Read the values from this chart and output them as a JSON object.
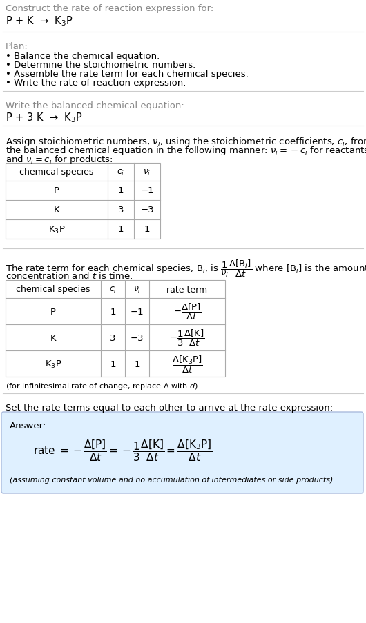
{
  "title_line1": "Construct the rate of reaction expression for:",
  "title_line2": "P + K  →  K$_3$P",
  "plan_header": "Plan:",
  "plan_items": [
    "• Balance the chemical equation.",
    "• Determine the stoichiometric numbers.",
    "• Assemble the rate term for each chemical species.",
    "• Write the rate of reaction expression."
  ],
  "balanced_header": "Write the balanced chemical equation:",
  "balanced_eq": "P + 3 K  →  K$_3$P",
  "stoich_intro1": "Assign stoichiometric numbers, $\\nu_i$, using the stoichiometric coefficients, $c_i$, from",
  "stoich_intro2": "the balanced chemical equation in the following manner: $\\nu_i = -c_i$ for reactants",
  "stoich_intro3": "and $\\nu_i = c_i$ for products:",
  "table1_headers": [
    "chemical species",
    "$c_i$",
    "$\\nu_i$"
  ],
  "table1_rows": [
    [
      "P",
      "1",
      "−1"
    ],
    [
      "K",
      "3",
      "−3"
    ],
    [
      "K$_3$P",
      "1",
      "1"
    ]
  ],
  "rate_intro1": "The rate term for each chemical species, B$_i$, is $\\dfrac{1}{\\nu_i}\\dfrac{\\Delta[\\mathrm{B}_i]}{\\Delta t}$ where [B$_i$] is the amount",
  "rate_intro2": "concentration and $t$ is time:",
  "table2_headers": [
    "chemical species",
    "$c_i$",
    "$\\nu_i$",
    "rate term"
  ],
  "table2_rows": [
    [
      "P",
      "1",
      "−1",
      "$-\\dfrac{\\Delta[\\mathrm{P}]}{\\Delta t}$"
    ],
    [
      "K",
      "3",
      "−3",
      "$-\\dfrac{1}{3}\\dfrac{\\Delta[\\mathrm{K}]}{\\Delta t}$"
    ],
    [
      "K$_3$P",
      "1",
      "1",
      "$\\dfrac{\\Delta[\\mathrm{K_3P}]}{\\Delta t}$"
    ]
  ],
  "infinitesimal_note": "(for infinitesimal rate of change, replace Δ with $d$)",
  "set_equal_text": "Set the rate terms equal to each other to arrive at the rate expression:",
  "answer_box_color": "#dff0ff",
  "answer_label": "Answer:",
  "answer_rate": "rate $= -\\dfrac{\\Delta[\\mathrm{P}]}{\\Delta t} = -\\dfrac{1}{3}\\dfrac{\\Delta[\\mathrm{K}]}{\\Delta t} = \\dfrac{\\Delta[\\mathrm{K_3P}]}{\\Delta t}$",
  "answer_note": "(assuming constant volume and no accumulation of intermediates or side products)",
  "bg_color": "#ffffff",
  "text_color": "#000000",
  "gray_text_color": "#888888",
  "line_color": "#cccccc",
  "table_border_color": "#aaaaaa",
  "answer_border_color": "#aabbdd"
}
